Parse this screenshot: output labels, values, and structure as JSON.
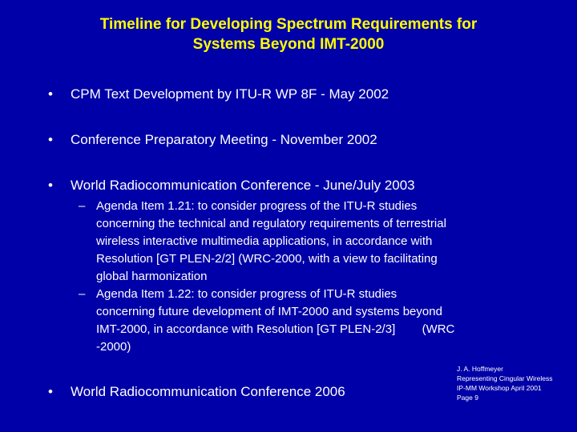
{
  "title": {
    "lines": [
      "Timeline for Developing Spectrum Requirements for",
      "Systems Beyond IMT-2000"
    ]
  },
  "bullets": [
    {
      "marker": "•",
      "text": "CPM Text Development by ITU-R WP 8F - May 2002"
    },
    {
      "marker": "•",
      "text": "Conference Preparatory Meeting - November 2002"
    },
    {
      "marker": "•",
      "text": "World Radiocommunication Conference - June/July 2003",
      "sub_bullets": [
        {
          "marker": "–",
          "lines": [
            "Agenda Item 1.21: to consider progress of the ITU-R studies",
            "concerning the technical and regulatory requirements of terrestrial",
            "wireless interactive multimedia applications, in accordance with",
            "Resolution [GT PLEN-2/2] (WRC-2000, with a view to facilitating",
            "global harmonization"
          ]
        },
        {
          "marker": "–",
          "lines": [
            "Agenda Item 1.22: to consider progress of ITU-R studies",
            "concerning future development of IMT-2000 and systems beyond",
            "IMT-2000, in accordance with Resolution [GT PLEN-2/3]        (WRC",
            "-2000)"
          ]
        }
      ]
    },
    {
      "marker": "•",
      "text": "World Radiocommunication Conference 2006"
    }
  ],
  "footer": {
    "lines": [
      "J. A. Hoffmeyer",
      "Representing Cingular Wireless",
      "IP-MM Workshop April 2001",
      "Page 9"
    ]
  }
}
